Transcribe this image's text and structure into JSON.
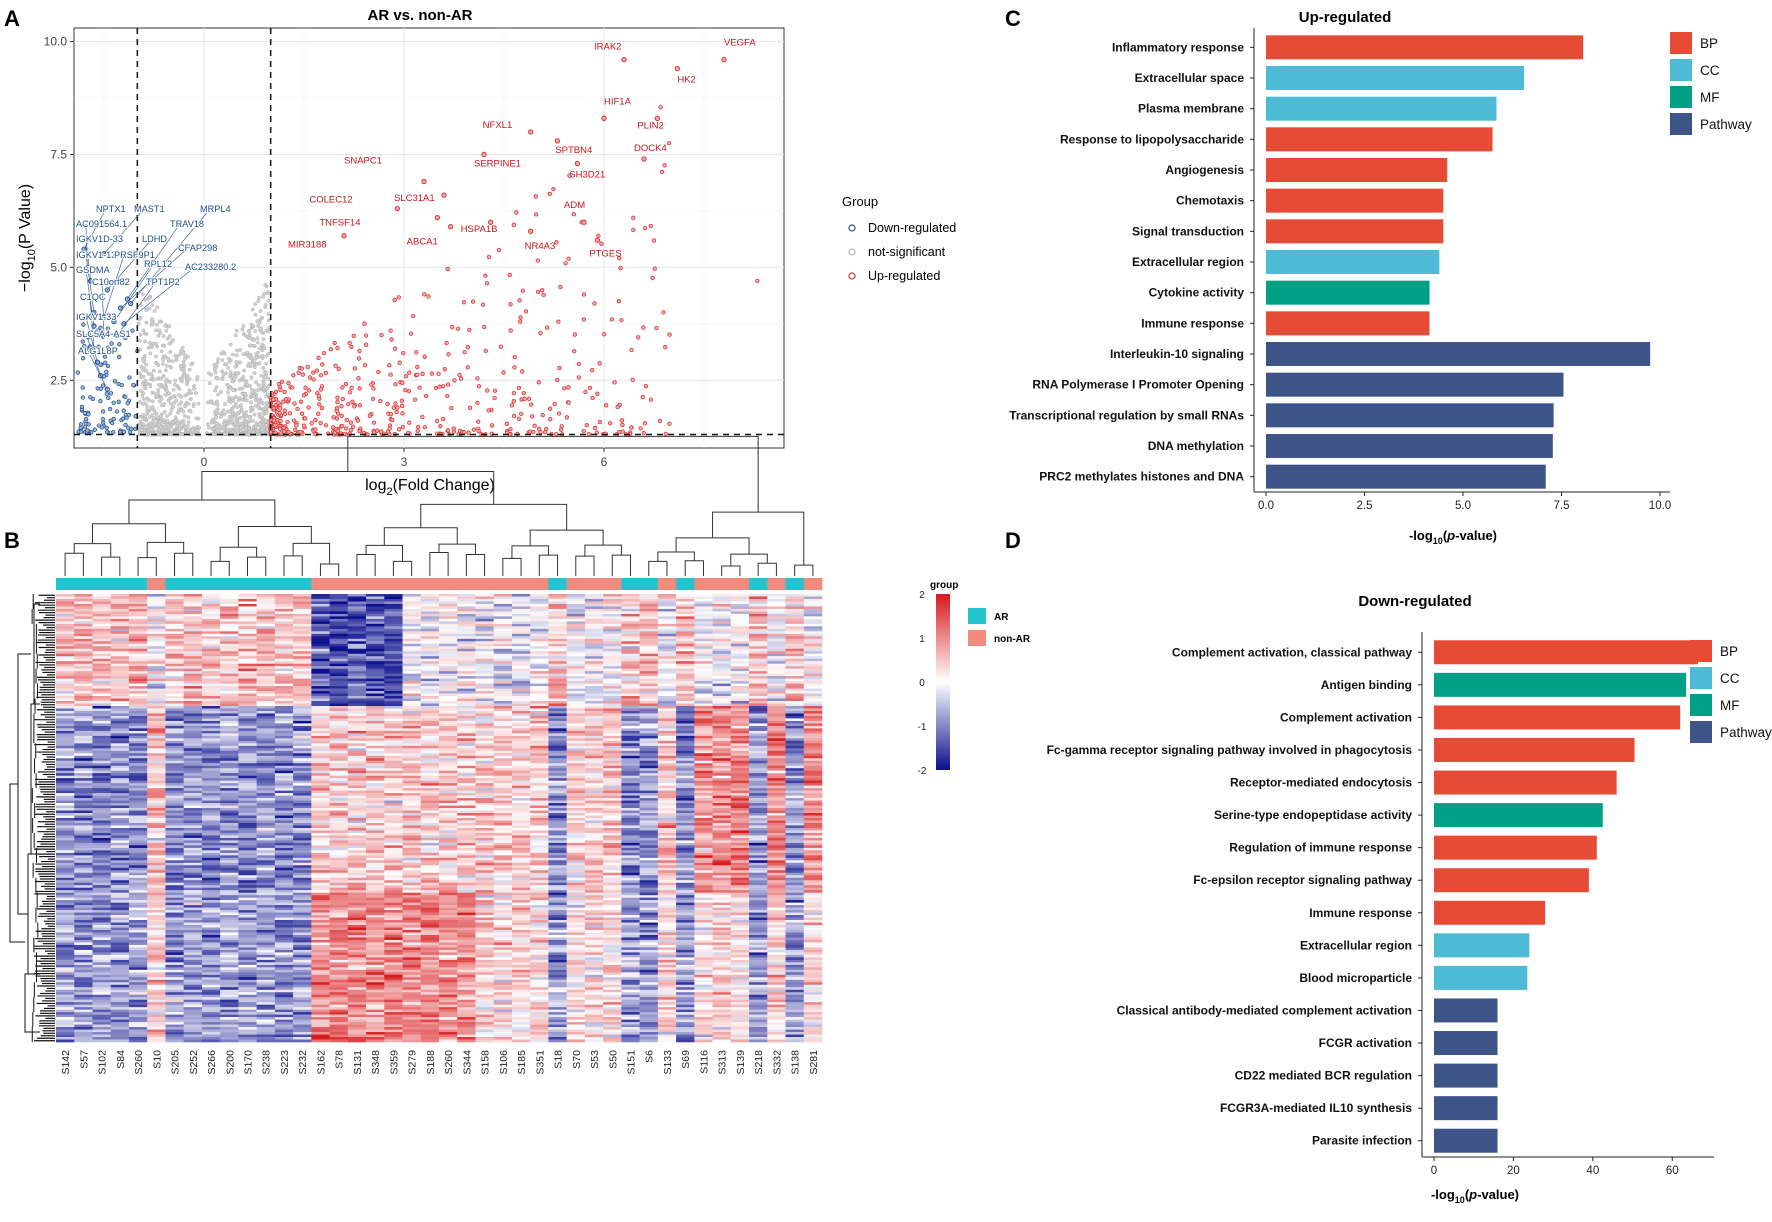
{
  "panels": {
    "a": "A",
    "b": "B",
    "c": "C",
    "d": "D"
  },
  "chart_data": [
    {
      "panel": "A",
      "type": "scatter",
      "title": "AR vs. non-AR",
      "xlabel": "log2(Fold Change)",
      "ylabel": "-log10(P Value)",
      "xlabel_parts": {
        "pre": "log",
        "sub": "2",
        "post": "(Fold Change)"
      },
      "ylabel_parts": {
        "pre": "−log",
        "sub": "10",
        "post": "(P Value)"
      },
      "xlim": [
        -1.95,
        8.7
      ],
      "ylim": [
        1.0,
        10.3
      ],
      "xticks": [
        0,
        3,
        6
      ],
      "yticks": [
        2.5,
        5.0,
        7.5,
        10.0
      ],
      "xtick_labels": [
        "0",
        "3",
        "6"
      ],
      "ytick_labels": [
        "2.5",
        "5.0",
        "7.5",
        "10.0"
      ],
      "thresholds": {
        "x": [
          -1,
          1
        ],
        "y": 1.3
      },
      "legend": {
        "title": "Group",
        "items": [
          {
            "label": "Down-regulated",
            "color": "#1f4e8c"
          },
          {
            "label": "not-significant",
            "color": "#b5b5b5"
          },
          {
            "label": "Up-regulated",
            "color": "#d42a2a"
          }
        ]
      },
      "labeled_points": [
        {
          "label": "IRAK2",
          "x": 6.3,
          "y": 9.6,
          "group": "up"
        },
        {
          "label": "VEGFA",
          "x": 7.8,
          "y": 9.6,
          "group": "up"
        },
        {
          "label": "HK2",
          "x": 7.1,
          "y": 9.4,
          "group": "up"
        },
        {
          "label": "HIF1A",
          "x": 6.0,
          "y": 8.3,
          "group": "up"
        },
        {
          "label": "PLIN2",
          "x": 6.8,
          "y": 8.3,
          "group": "up"
        },
        {
          "label": "NFXL1",
          "x": 4.9,
          "y": 8.0,
          "group": "up"
        },
        {
          "label": "SPTBN4",
          "x": 5.3,
          "y": 7.8,
          "group": "up"
        },
        {
          "label": "DOCK4",
          "x": 6.6,
          "y": 7.4,
          "group": "up"
        },
        {
          "label": "SERPINE1",
          "x": 4.2,
          "y": 7.5,
          "group": "up"
        },
        {
          "label": "SH3D21",
          "x": 5.6,
          "y": 7.3,
          "group": "up"
        },
        {
          "label": "SNAPC1",
          "x": 3.3,
          "y": 6.9,
          "group": "up"
        },
        {
          "label": "SLC31A1",
          "x": 3.6,
          "y": 6.6,
          "group": "up"
        },
        {
          "label": "COLEC12",
          "x": 2.9,
          "y": 6.3,
          "group": "up"
        },
        {
          "label": "TNFSF14",
          "x": 3.5,
          "y": 6.1,
          "group": "up"
        },
        {
          "label": "HSPA1B",
          "x": 4.3,
          "y": 6.0,
          "group": "up"
        },
        {
          "label": "ADM",
          "x": 5.7,
          "y": 6.0,
          "group": "up"
        },
        {
          "label": "ABCA1",
          "x": 3.7,
          "y": 5.9,
          "group": "up"
        },
        {
          "label": "NR4A3",
          "x": 4.9,
          "y": 5.8,
          "group": "up"
        },
        {
          "label": "PTGES",
          "x": 5.9,
          "y": 5.6,
          "group": "up"
        },
        {
          "label": "MIR3188",
          "x": 2.1,
          "y": 5.7,
          "group": "up"
        },
        {
          "label": "NPTX1",
          "x": -1.8,
          "y": 5.4,
          "group": "down"
        },
        {
          "label": "MAST1",
          "x": -1.5,
          "y": 5.3,
          "group": "down"
        },
        {
          "label": "MRPL4",
          "x": -1.1,
          "y": 4.2,
          "group": "down"
        },
        {
          "label": "AC091564.1",
          "x": -1.75,
          "y": 5.0,
          "group": "down"
        },
        {
          "label": "TRAV18",
          "x": -1.15,
          "y": 4.3,
          "group": "down"
        },
        {
          "label": "IGKV1D-33",
          "x": -1.7,
          "y": 4.7,
          "group": "down"
        },
        {
          "label": "LDHD",
          "x": -1.45,
          "y": 4.5,
          "group": "down"
        },
        {
          "label": "CFAP298",
          "x": -1.25,
          "y": 4.1,
          "group": "down"
        },
        {
          "label": "IGKV1-13",
          "x": -1.65,
          "y": 4.0,
          "group": "down"
        },
        {
          "label": "PRSF9P1",
          "x": -1.5,
          "y": 3.9,
          "group": "down"
        },
        {
          "label": "RPL12",
          "x": -1.35,
          "y": 3.8,
          "group": "down"
        },
        {
          "label": "AC233280.2",
          "x": -1.2,
          "y": 3.75,
          "group": "down"
        },
        {
          "label": "GSDMA",
          "x": -1.65,
          "y": 3.7,
          "group": "down"
        },
        {
          "label": "C10orf82",
          "x": -1.5,
          "y": 3.5,
          "group": "down"
        },
        {
          "label": "TPT1P2",
          "x": -1.3,
          "y": 3.5,
          "group": "down"
        },
        {
          "label": "C1QC",
          "x": -1.65,
          "y": 3.2,
          "group": "down"
        },
        {
          "label": "IGKV1-33",
          "x": -1.6,
          "y": 2.9,
          "group": "down"
        },
        {
          "label": "SLC5A4-AS1",
          "x": -1.55,
          "y": 2.6,
          "group": "down"
        },
        {
          "label": "ALG1L8P",
          "x": -1.45,
          "y": 2.3,
          "group": "down"
        }
      ]
    },
    {
      "panel": "B",
      "type": "heatmap",
      "samples": [
        "S142",
        "S57",
        "S102",
        "S84",
        "S260",
        "S10",
        "S205",
        "S252",
        "S266",
        "S200",
        "S170",
        "S238",
        "S223",
        "S232",
        "S162",
        "S78",
        "S131",
        "S348",
        "S359",
        "S279",
        "S188",
        "S260",
        "S344",
        "S158",
        "S106",
        "S185",
        "S351",
        "S18",
        "S70",
        "S53",
        "S50",
        "S151",
        "S6",
        "S133",
        "S69",
        "S116",
        "S313",
        "S139",
        "S218",
        "S332",
        "S138",
        "S281"
      ],
      "groups": [
        "AR",
        "AR",
        "AR",
        "AR",
        "AR",
        "non-AR",
        "AR",
        "AR",
        "AR",
        "AR",
        "AR",
        "AR",
        "AR",
        "AR",
        "non-AR",
        "non-AR",
        "non-AR",
        "non-AR",
        "non-AR",
        "non-AR",
        "non-AR",
        "non-AR",
        "non-AR",
        "non-AR",
        "non-AR",
        "non-AR",
        "non-AR",
        "AR",
        "non-AR",
        "non-AR",
        "non-AR",
        "AR",
        "AR",
        "non-AR",
        "AR",
        "non-AR",
        "non-AR",
        "non-AR",
        "AR",
        "non-AR",
        "AR",
        "non-AR"
      ],
      "scale": {
        "title": "group",
        "ticks": [
          2,
          1,
          0,
          -1,
          -2
        ],
        "tick_labels": [
          "2",
          "1",
          "0",
          "-1",
          "-2"
        ],
        "min": -2,
        "max": 2
      },
      "legend": [
        {
          "label": "AR",
          "color": "#22c4cf"
        },
        {
          "label": "non-AR",
          "color": "#f08b7e"
        }
      ]
    },
    {
      "panel": "C",
      "type": "bar",
      "orientation": "horizontal",
      "title": "Up-regulated",
      "xlabel_parts": {
        "pre": "-log",
        "sub": "10",
        "post": "(",
        "ital": "p",
        "post2": "-value)"
      },
      "xlim": [
        0,
        10.0
      ],
      "xticks": [
        0.0,
        2.5,
        5.0,
        7.5,
        10.0
      ],
      "xtick_labels": [
        "0.0",
        "2.5",
        "5.0",
        "7.5",
        "10.0"
      ],
      "categories": [
        "Inflammatory response",
        "Extracellular space",
        "Plasma membrane",
        "Response to lipopolysaccharide",
        "Angiogenesis",
        "Chemotaxis",
        "Signal transduction",
        "Extracellular region",
        "Cytokine activity",
        "Immune response",
        "Interleukin-10 signaling",
        "RNA Polymerase I Promoter Opening",
        "Transcriptional regulation by small RNAs",
        "DNA methylation",
        "PRC2 methylates histones and DNA"
      ],
      "values": [
        8.05,
        6.55,
        5.85,
        5.75,
        4.6,
        4.5,
        4.5,
        4.4,
        4.15,
        4.15,
        9.75,
        7.55,
        7.3,
        7.28,
        7.1
      ],
      "types": [
        "BP",
        "CC",
        "CC",
        "BP",
        "BP",
        "BP",
        "BP",
        "CC",
        "MF",
        "BP",
        "Pathway",
        "Pathway",
        "Pathway",
        "Pathway",
        "Pathway"
      ],
      "legend": [
        {
          "label": "BP",
          "color": "#e64b35"
        },
        {
          "label": "CC",
          "color": "#4dbbd5"
        },
        {
          "label": "MF",
          "color": "#00a087"
        },
        {
          "label": "Pathway",
          "color": "#3c5488"
        }
      ]
    },
    {
      "panel": "D",
      "type": "bar",
      "orientation": "horizontal",
      "title": "Down-regulated",
      "xlabel_parts": {
        "pre": "-log",
        "sub": "10",
        "post": "(",
        "ital": "p",
        "post2": "-value)"
      },
      "xlim": [
        0,
        68
      ],
      "xticks": [
        0,
        20,
        40,
        60
      ],
      "xtick_labels": [
        "0",
        "20",
        "40",
        "60"
      ],
      "categories": [
        "Complement activation, classical pathway",
        "Antigen binding",
        "Complement activation",
        "Fc-gamma receptor signaling pathway involved in phagocytosis",
        "Receptor-mediated endocytosis",
        "Serine-type endopeptidase activity",
        "Regulation of immune response",
        "Fc-epsilon receptor signaling pathway",
        "Immune response",
        "Extracellular region",
        "Blood microparticle",
        "Classical antibody-mediated complement activation",
        "FCGR activation",
        "CD22 mediated BCR regulation",
        "FCGR3A-mediated IL10 synthesis",
        "Parasite infection"
      ],
      "values": [
        66.5,
        63.5,
        62.0,
        50.5,
        46.0,
        42.5,
        41.0,
        39.0,
        28.0,
        24.0,
        23.5,
        16.0,
        16.0,
        16.0,
        16.0,
        16.0
      ],
      "types": [
        "BP",
        "MF",
        "BP",
        "BP",
        "BP",
        "MF",
        "BP",
        "BP",
        "BP",
        "CC",
        "CC",
        "Pathway",
        "Pathway",
        "Pathway",
        "Pathway",
        "Pathway"
      ],
      "legend": [
        {
          "label": "BP",
          "color": "#e64b35"
        },
        {
          "label": "CC",
          "color": "#4dbbd5"
        },
        {
          "label": "MF",
          "color": "#00a087"
        },
        {
          "label": "Pathway",
          "color": "#3c5488"
        }
      ]
    }
  ]
}
